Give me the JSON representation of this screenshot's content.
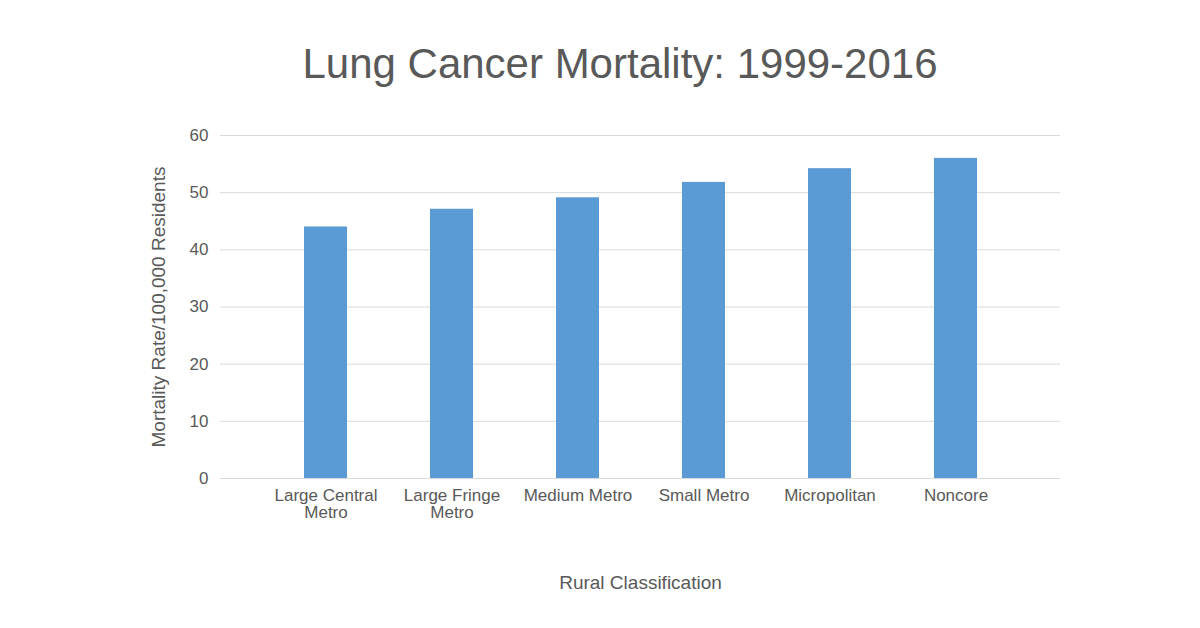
{
  "chart_data": {
    "type": "bar",
    "title": "Lung Cancer Mortality: 1999-2016",
    "x_label": "Rural Classification",
    "y_label": "Mortality Rate/100,000 Residents",
    "categories": [
      "Large Central Metro",
      "Large Fringe Metro",
      "Medium Metro",
      "Small Metro",
      "Micropolitan",
      "Noncore"
    ],
    "values": [
      44,
      47.1,
      49.1,
      51.8,
      54.2,
      56
    ],
    "color": "#5b9bd5",
    "ylim": [
      0,
      60
    ],
    "yticks": [
      0,
      10,
      20,
      30,
      40,
      50,
      60
    ],
    "grid": true
  }
}
